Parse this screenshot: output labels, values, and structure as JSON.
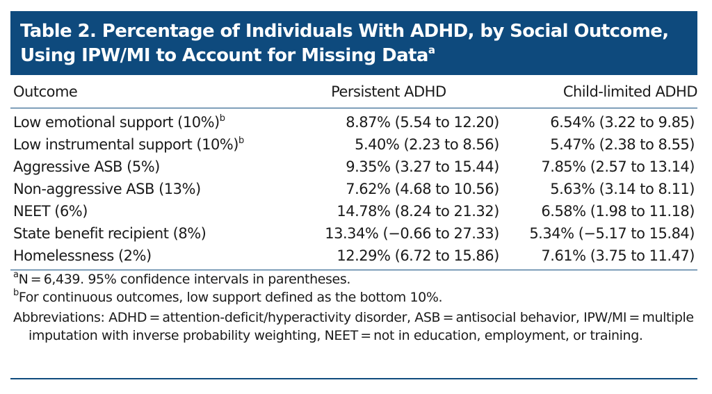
{
  "title": {
    "line1": "Table 2. Percentage of Individuals With ADHD, by Social Outcome,",
    "line2": "Using IPW/MI to Account for Missing Data",
    "line2_sup": "a"
  },
  "table": {
    "headers": {
      "outcome": "Outcome",
      "persistent": "Persistent ADHD",
      "child_limited": "Child-limited ADHD"
    },
    "rows": [
      {
        "outcome": "Low emotional support (10%)",
        "sup": "b",
        "persistent": "8.87% (5.54 to 12.20)",
        "child_limited": "6.54% (3.22 to 9.85)"
      },
      {
        "outcome": "Low instrumental support (10%)",
        "sup": "b",
        "persistent": "5.40% (2.23 to 8.56)",
        "child_limited": "5.47% (2.38 to 8.55)"
      },
      {
        "outcome": "Aggressive ASB (5%)",
        "sup": "",
        "persistent": "9.35% (3.27 to 15.44)",
        "child_limited": "7.85% (2.57 to 13.14)"
      },
      {
        "outcome": "Non-aggressive ASB (13%)",
        "sup": "",
        "persistent": "7.62% (4.68 to 10.56)",
        "child_limited": "5.63% (3.14 to 8.11)"
      },
      {
        "outcome": "NEET (6%)",
        "sup": "",
        "persistent": "14.78% (8.24 to 21.32)",
        "child_limited": "6.58% (1.98 to 11.18)"
      },
      {
        "outcome": "State benefit recipient (8%)",
        "sup": "",
        "persistent": "13.34% (−0.66 to 27.33)",
        "child_limited": "5.34% (−5.17 to 15.84)"
      },
      {
        "outcome": "Homelessness (2%)",
        "sup": "",
        "persistent": "12.29% (6.72 to 15.86)",
        "child_limited": "7.61% (3.75 to 11.47)"
      }
    ]
  },
  "notes": {
    "a_sup": "a",
    "a_text": "N = 6,439. 95% confidence intervals in parentheses.",
    "b_sup": "b",
    "b_text": "For continuous outcomes, low support defined as the bottom 10%.",
    "abbreviations": "Abbreviations: ADHD = attention-deficit/hyperactivity disorder, ASB = antisocial behavior, IPW/MI = multiple imputation with inverse probability weighting, NEET = not in education, employment, or training."
  },
  "colors": {
    "title_background": "#0e4a7d",
    "title_text": "#ffffff",
    "rules": "#0e4a7d"
  }
}
